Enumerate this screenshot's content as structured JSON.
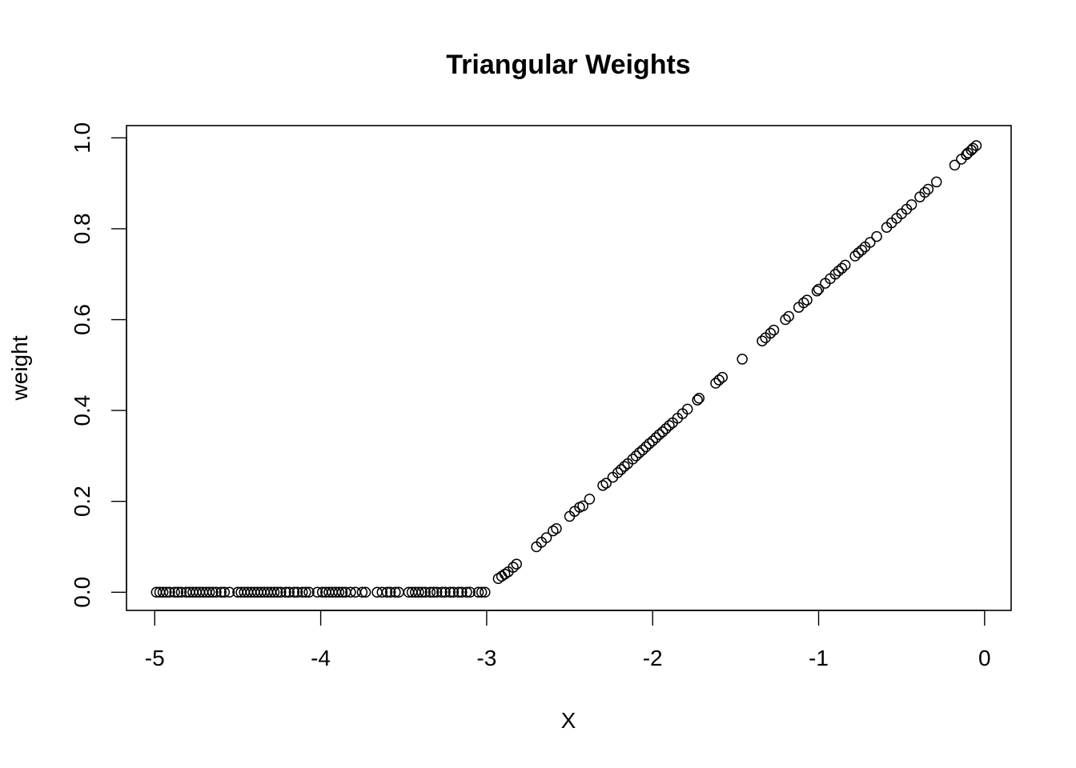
{
  "chart_data": {
    "type": "scatter",
    "title": "Triangular Weights",
    "xlabel": "X",
    "ylabel": "weight",
    "xlim": [
      -5.17,
      0.16
    ],
    "ylim": [
      -0.04,
      1.027
    ],
    "x_ticks": [
      -5,
      -4,
      -3,
      -2,
      -1,
      0
    ],
    "x_tick_labels": [
      "-5",
      "-4",
      "-3",
      "-2",
      "-1",
      "0"
    ],
    "y_ticks": [
      0.0,
      0.2,
      0.4,
      0.6,
      0.8,
      1.0
    ],
    "y_tick_labels": [
      "0.0",
      "0.2",
      "0.4",
      "0.6",
      "0.8",
      "1.0"
    ],
    "grid": false,
    "marker": "open-circle",
    "series": [
      {
        "x": [
          -4.99,
          -4.97,
          -4.95,
          -4.93,
          -4.91,
          -4.88,
          -4.86,
          -4.84,
          -4.81,
          -4.79,
          -4.77,
          -4.75,
          -4.73,
          -4.71,
          -4.69,
          -4.67,
          -4.65,
          -4.63,
          -4.6,
          -4.58,
          -4.55,
          -4.5,
          -4.48,
          -4.46,
          -4.44,
          -4.42,
          -4.4,
          -4.38,
          -4.36,
          -4.34,
          -4.32,
          -4.3,
          -4.28,
          -4.26,
          -4.24,
          -4.21,
          -4.19,
          -4.16,
          -4.14,
          -4.11,
          -4.09,
          -4.07,
          -4.02,
          -3.99,
          -3.97,
          -3.95,
          -3.93,
          -3.91,
          -3.89,
          -3.87,
          -3.85,
          -3.82,
          -3.79,
          -3.75,
          -3.73,
          -3.66,
          -3.63,
          -3.6,
          -3.58,
          -3.55,
          -3.53,
          -3.47,
          -3.45,
          -3.43,
          -3.41,
          -3.39,
          -3.37,
          -3.34,
          -3.32,
          -3.3,
          -3.27,
          -3.25,
          -3.22,
          -3.2,
          -3.17,
          -3.15,
          -3.12,
          -3.1,
          -3.05,
          -3.03,
          -3.01,
          -2.93,
          -2.91,
          -2.89,
          -2.87,
          -2.84,
          -2.82,
          -2.7,
          -2.67,
          -2.64,
          -2.6,
          -2.58,
          -2.5,
          -2.47,
          -2.44,
          -2.42,
          -2.38,
          -2.3,
          -2.28,
          -2.24,
          -2.21,
          -2.19,
          -2.17,
          -2.15,
          -2.12,
          -2.1,
          -2.08,
          -2.06,
          -2.04,
          -2.02,
          -2.0,
          -1.98,
          -1.96,
          -1.94,
          -1.92,
          -1.9,
          -1.88,
          -1.85,
          -1.82,
          -1.79,
          -1.73,
          -1.72,
          -1.62,
          -1.6,
          -1.58,
          -1.46,
          -1.34,
          -1.32,
          -1.29,
          -1.27,
          -1.2,
          -1.18,
          -1.12,
          -1.09,
          -1.07,
          -1.01,
          -1.0,
          -0.96,
          -0.93,
          -0.9,
          -0.88,
          -0.86,
          -0.84,
          -0.78,
          -0.76,
          -0.74,
          -0.72,
          -0.69,
          -0.65,
          -0.59,
          -0.56,
          -0.53,
          -0.5,
          -0.47,
          -0.44,
          -0.39,
          -0.36,
          -0.34,
          -0.29,
          -0.18,
          -0.14,
          -0.11,
          -0.1,
          -0.08,
          -0.07,
          -0.05
        ],
        "y": [
          0,
          0,
          0,
          0,
          0,
          0,
          0,
          0,
          0,
          0,
          0,
          0,
          0,
          0,
          0,
          0,
          0,
          0,
          0,
          0,
          0,
          0,
          0,
          0,
          0,
          0,
          0,
          0,
          0,
          0,
          0,
          0,
          0,
          0,
          0,
          0,
          0,
          0,
          0,
          0,
          0,
          0,
          0,
          0,
          0,
          0,
          0,
          0,
          0,
          0,
          0,
          0,
          0,
          0,
          0,
          0,
          0,
          0,
          0,
          0,
          0,
          0,
          0,
          0,
          0,
          0,
          0,
          0,
          0,
          0,
          0,
          0,
          0,
          0,
          0,
          0,
          0,
          0,
          0,
          0,
          0,
          0.03,
          0.035,
          0.04,
          0.045,
          0.055,
          0.062,
          0.1,
          0.11,
          0.12,
          0.135,
          0.14,
          0.167,
          0.178,
          0.187,
          0.19,
          0.205,
          0.235,
          0.24,
          0.253,
          0.263,
          0.27,
          0.277,
          0.283,
          0.293,
          0.3,
          0.307,
          0.313,
          0.32,
          0.327,
          0.333,
          0.34,
          0.347,
          0.353,
          0.36,
          0.367,
          0.373,
          0.383,
          0.393,
          0.403,
          0.423,
          0.427,
          0.46,
          0.467,
          0.473,
          0.513,
          0.553,
          0.56,
          0.57,
          0.577,
          0.6,
          0.607,
          0.627,
          0.637,
          0.643,
          0.663,
          0.667,
          0.68,
          0.69,
          0.7,
          0.707,
          0.713,
          0.72,
          0.74,
          0.747,
          0.753,
          0.76,
          0.77,
          0.783,
          0.803,
          0.813,
          0.823,
          0.833,
          0.843,
          0.853,
          0.87,
          0.88,
          0.887,
          0.903,
          0.94,
          0.953,
          0.963,
          0.967,
          0.973,
          0.977,
          0.983
        ]
      }
    ]
  }
}
